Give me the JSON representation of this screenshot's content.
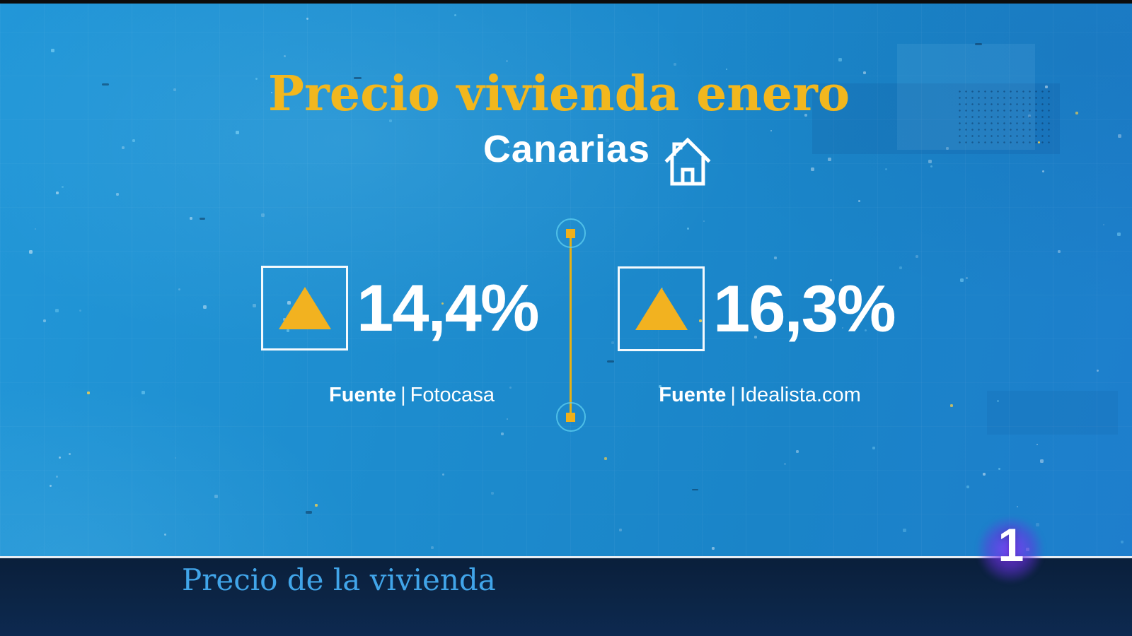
{
  "header": {
    "title": "Precio vivienda enero",
    "subtitle": "Canarias"
  },
  "stats": [
    {
      "value": "14,4%",
      "trend": "up",
      "source_label": "Fuente",
      "source_divider": "|",
      "source": "Fotocasa"
    },
    {
      "value": "16,3%",
      "trend": "up",
      "source_label": "Fuente",
      "source_divider": "|",
      "source": "Idealista.com"
    }
  ],
  "lower_third": {
    "caption": "Precio de la vivienda"
  },
  "channel_badge": {
    "number": "1"
  },
  "colors": {
    "title_gold": "#f2b71e",
    "triangle_gold": "#f2b220",
    "divider_gold": "#e7b112",
    "divider_circle_cyan": "#5fd0f0",
    "background_blue": "#1d8cce",
    "lower_third_navy": "#0c2546",
    "caption_blue": "#41a5e9",
    "badge_purple": "#7d3ef5",
    "text_white": "#ffffff"
  },
  "chart_data": {
    "type": "table",
    "title": "Precio vivienda enero",
    "subtitle": "Canarias",
    "unit": "%",
    "series": [
      {
        "name": "Fotocasa",
        "value": 14.4,
        "direction": "up"
      },
      {
        "name": "Idealista.com",
        "value": 16.3,
        "direction": "up"
      }
    ],
    "caption": "Precio de la vivienda"
  }
}
